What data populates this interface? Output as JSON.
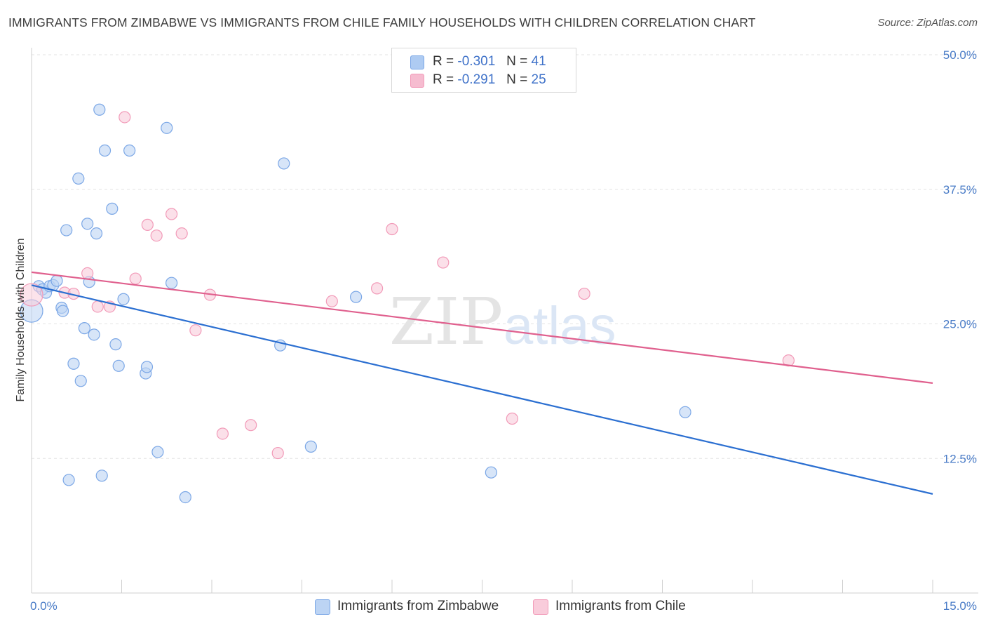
{
  "header": {
    "title": "IMMIGRANTS FROM ZIMBABWE VS IMMIGRANTS FROM CHILE FAMILY HOUSEHOLDS WITH CHILDREN CORRELATION CHART",
    "source": "Source: ZipAtlas.com"
  },
  "watermark": {
    "zip": "ZIP",
    "atlas": "atlas"
  },
  "legend": {
    "rows": [
      {
        "r_label": "R =",
        "r_value": "-0.301",
        "n_label": "N =",
        "n_value": "41",
        "color": "#aecbf2"
      },
      {
        "r_label": "R =",
        "r_value": "-0.291",
        "n_label": "N =",
        "n_value": "25",
        "color": "#f6bcd0"
      }
    ]
  },
  "chart_data": {
    "type": "scatter",
    "title": "IMMIGRANTS FROM ZIMBABWE VS IMMIGRANTS FROM CHILE FAMILY HOUSEHOLDS WITH CHILDREN CORRELATION CHART",
    "xlabel": "",
    "ylabel": "Family Households with Children",
    "xlim": [
      0,
      15
    ],
    "ylim": [
      0,
      50
    ],
    "x_tick_labels": [
      "0.0%",
      "15.0%"
    ],
    "y_ticks": [
      12.5,
      25.0,
      37.5,
      50.0
    ],
    "y_tick_labels": [
      "12.5%",
      "25.0%",
      "37.5%",
      "50.0%"
    ],
    "grid": true,
    "legend_placement": "bottom",
    "series": [
      {
        "name": "Immigrants from Zimbabwe",
        "color": "#7ba7e6",
        "fill": "#bcd4f4",
        "line_color": "#2b6fd1",
        "trend": {
          "x": [
            0,
            15
          ],
          "y": [
            28.6,
            9.2
          ]
        },
        "points": [
          {
            "x": 0.0,
            "y": 26.2,
            "big": true
          },
          {
            "x": 0.12,
            "y": 28.5
          },
          {
            "x": 0.18,
            "y": 28.2
          },
          {
            "x": 0.24,
            "y": 27.9
          },
          {
            "x": 0.3,
            "y": 28.5
          },
          {
            "x": 0.36,
            "y": 28.6
          },
          {
            "x": 0.42,
            "y": 29.0
          },
          {
            "x": 0.5,
            "y": 26.5
          },
          {
            "x": 0.52,
            "y": 26.2
          },
          {
            "x": 0.58,
            "y": 33.7
          },
          {
            "x": 0.62,
            "y": 10.5
          },
          {
            "x": 0.7,
            "y": 21.3
          },
          {
            "x": 0.78,
            "y": 38.5
          },
          {
            "x": 0.82,
            "y": 19.7
          },
          {
            "x": 0.88,
            "y": 24.6
          },
          {
            "x": 0.93,
            "y": 34.3
          },
          {
            "x": 0.96,
            "y": 28.9
          },
          {
            "x": 1.04,
            "y": 24.0
          },
          {
            "x": 1.08,
            "y": 33.4
          },
          {
            "x": 1.13,
            "y": 44.9
          },
          {
            "x": 1.17,
            "y": 10.9
          },
          {
            "x": 1.22,
            "y": 41.1
          },
          {
            "x": 1.34,
            "y": 35.7
          },
          {
            "x": 1.4,
            "y": 23.1
          },
          {
            "x": 1.45,
            "y": 21.1
          },
          {
            "x": 1.53,
            "y": 27.3
          },
          {
            "x": 1.63,
            "y": 41.1
          },
          {
            "x": 1.9,
            "y": 20.4
          },
          {
            "x": 1.92,
            "y": 21.0
          },
          {
            "x": 2.1,
            "y": 13.1
          },
          {
            "x": 2.25,
            "y": 43.2
          },
          {
            "x": 2.33,
            "y": 28.8
          },
          {
            "x": 2.56,
            "y": 8.9
          },
          {
            "x": 4.14,
            "y": 23.0
          },
          {
            "x": 4.2,
            "y": 39.9
          },
          {
            "x": 4.65,
            "y": 13.6
          },
          {
            "x": 5.4,
            "y": 27.5
          },
          {
            "x": 7.65,
            "y": 11.2
          },
          {
            "x": 10.88,
            "y": 16.8
          }
        ]
      },
      {
        "name": "Immigrants from Chile",
        "color": "#f29ab8",
        "fill": "#f9ccdb",
        "line_color": "#e0608e",
        "trend": {
          "x": [
            0,
            15
          ],
          "y": [
            29.8,
            19.5
          ]
        },
        "points": [
          {
            "x": 0.0,
            "y": 27.7,
            "big": true
          },
          {
            "x": 0.55,
            "y": 27.9
          },
          {
            "x": 0.7,
            "y": 27.8
          },
          {
            "x": 0.93,
            "y": 29.7
          },
          {
            "x": 1.1,
            "y": 26.6
          },
          {
            "x": 1.3,
            "y": 26.6
          },
          {
            "x": 1.55,
            "y": 44.2
          },
          {
            "x": 1.73,
            "y": 29.2
          },
          {
            "x": 1.93,
            "y": 34.2
          },
          {
            "x": 2.08,
            "y": 33.2
          },
          {
            "x": 2.33,
            "y": 35.2
          },
          {
            "x": 2.5,
            "y": 33.4
          },
          {
            "x": 2.73,
            "y": 24.4
          },
          {
            "x": 2.97,
            "y": 27.7
          },
          {
            "x": 3.18,
            "y": 14.8
          },
          {
            "x": 3.65,
            "y": 15.6
          },
          {
            "x": 4.1,
            "y": 13.0
          },
          {
            "x": 5.0,
            "y": 27.1
          },
          {
            "x": 5.75,
            "y": 28.3
          },
          {
            "x": 6.0,
            "y": 33.8
          },
          {
            "x": 6.85,
            "y": 30.7
          },
          {
            "x": 8.0,
            "y": 16.2
          },
          {
            "x": 9.2,
            "y": 27.8
          },
          {
            "x": 12.6,
            "y": 21.6
          }
        ]
      }
    ]
  }
}
